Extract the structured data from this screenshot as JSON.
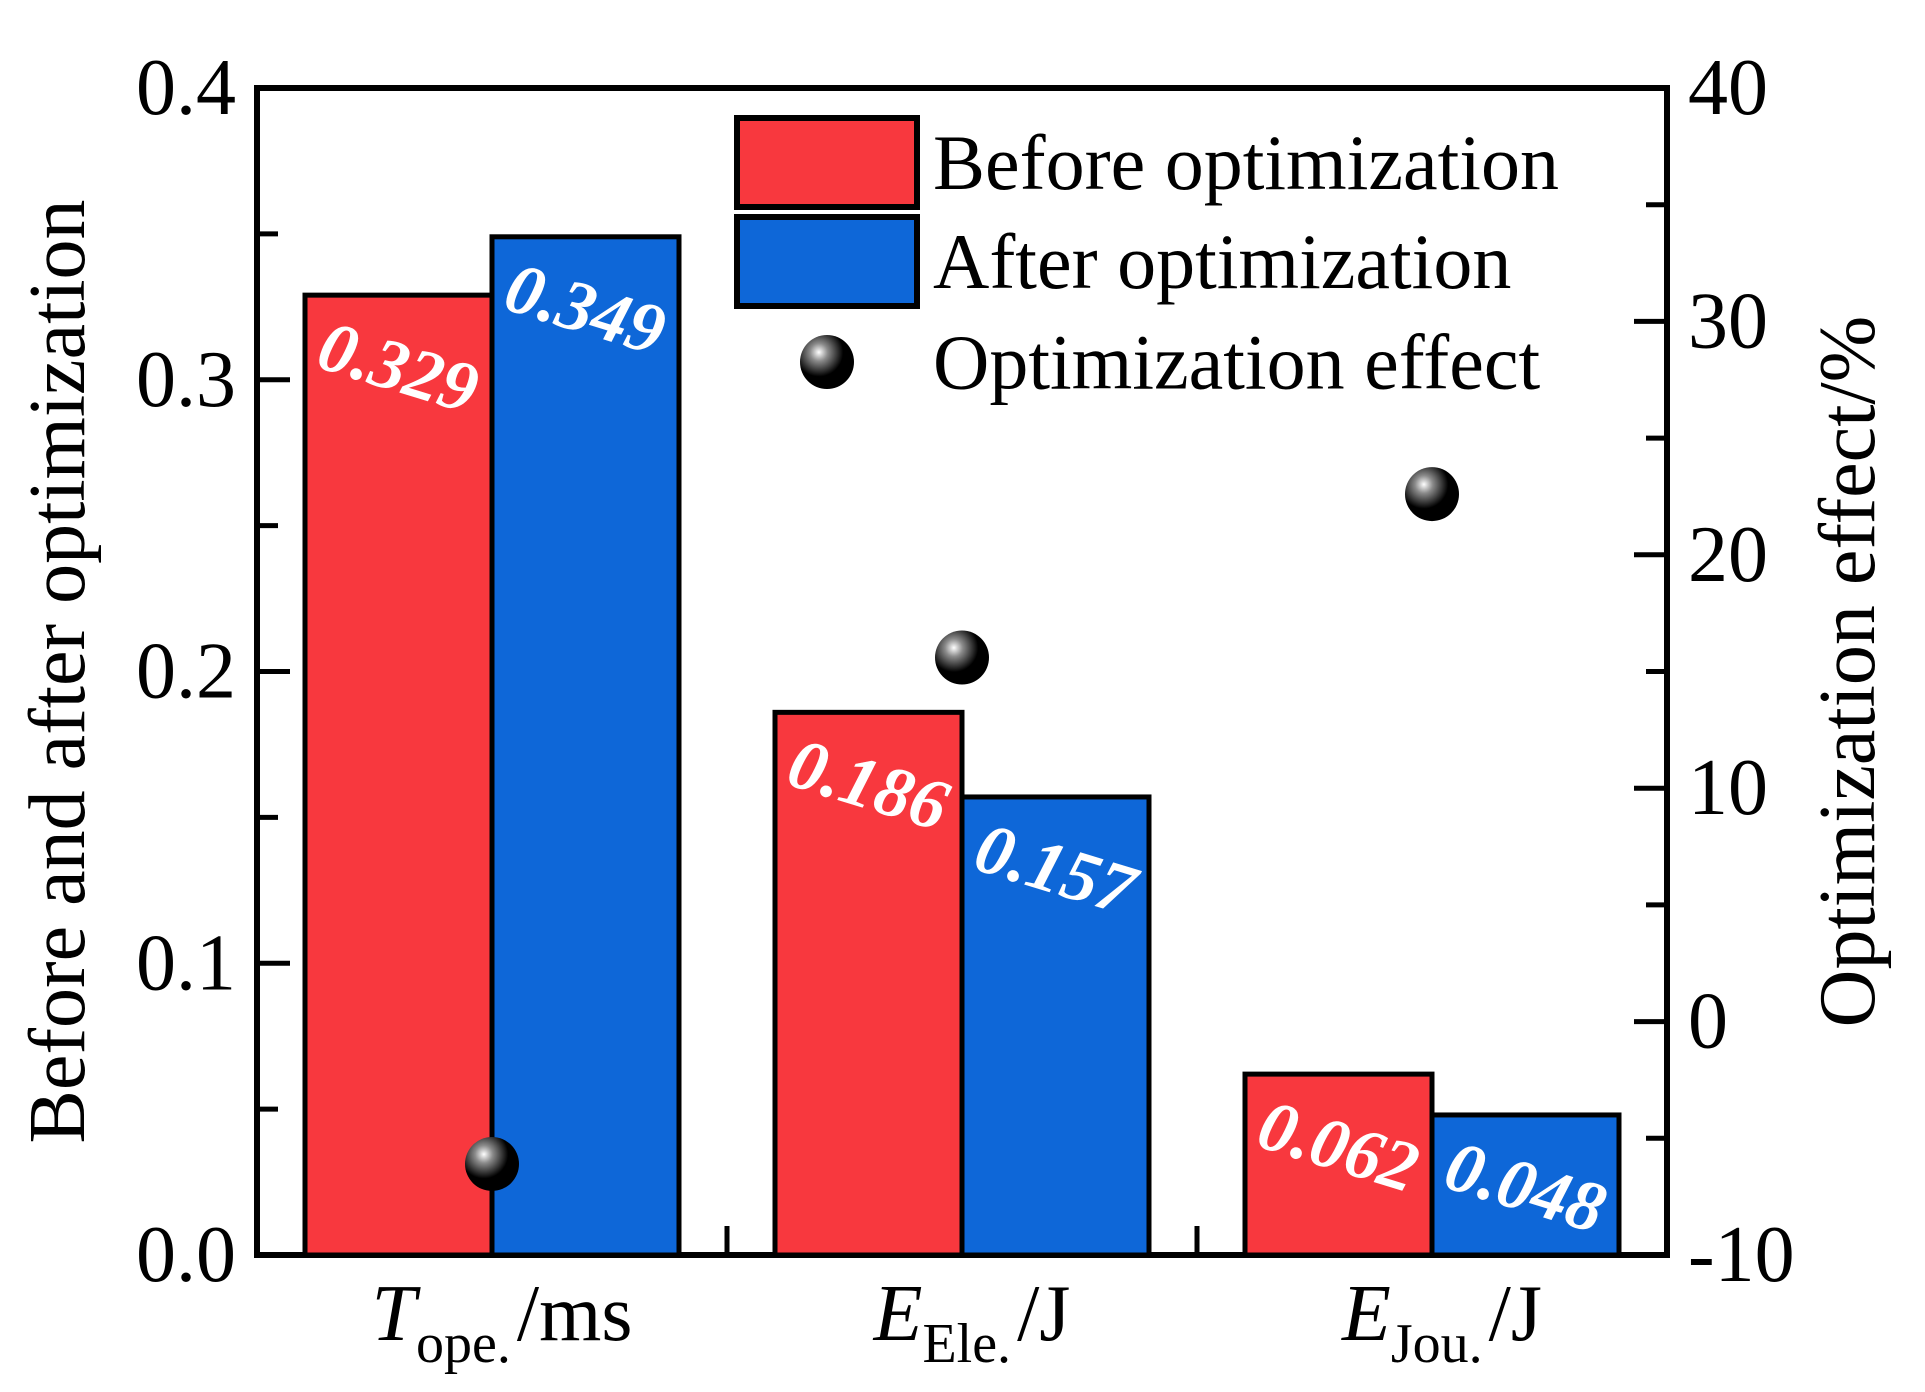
{
  "chart_data": {
    "type": "bar",
    "title": "",
    "categories": [
      {
        "base": "T",
        "sub": "ope.",
        "unit": "/ms"
      },
      {
        "base": "E",
        "sub": "Ele.",
        "unit": "/J"
      },
      {
        "base": "E",
        "sub": "Jou.",
        "unit": "/J"
      }
    ],
    "series": [
      {
        "name": "Before optimization",
        "color": "#f8383e",
        "values": [
          0.329,
          0.186,
          0.062
        ],
        "value_labels": [
          "0.329",
          "0.186",
          "0.062"
        ]
      },
      {
        "name": "After optimization",
        "color": "#0e67d8",
        "values": [
          0.349,
          0.157,
          0.048
        ],
        "value_labels": [
          "0.349",
          "0.157",
          "0.048"
        ]
      }
    ],
    "scatter_series": {
      "name": "Optimization effect",
      "color": "#000000",
      "values_percent": [
        -6.1,
        15.6,
        22.6
      ]
    },
    "left_axis": {
      "label": "Before and after optimization",
      "min": 0.0,
      "max": 0.4,
      "major_ticks": [
        0.0,
        0.1,
        0.2,
        0.3,
        0.4
      ],
      "tick_labels": [
        "0.0",
        "0.1",
        "0.2",
        "0.3",
        "0.4"
      ],
      "minor_ticks": [
        0.05,
        0.15,
        0.25,
        0.35
      ]
    },
    "right_axis": {
      "label": "Optimization effect/%",
      "min": -10,
      "max": 40,
      "major_ticks": [
        -10,
        0,
        10,
        20,
        30,
        40
      ],
      "tick_labels": [
        "-10",
        "0",
        "10",
        "20",
        "30",
        "40"
      ],
      "minor_ticks": [
        -5,
        5,
        15,
        25,
        35
      ]
    },
    "legend": {
      "entries": [
        {
          "label": "Before optimization",
          "marker": "rect",
          "color": "#f8383e"
        },
        {
          "label": "After optimization",
          "marker": "rect",
          "color": "#0e67d8"
        },
        {
          "label": "Optimization effect",
          "marker": "ball",
          "color": "#000000"
        }
      ],
      "position": "top-center-inside"
    },
    "bar_label_color": "#ffffff",
    "frame_color": "#000000",
    "background": "#ffffff",
    "grid": "off"
  }
}
